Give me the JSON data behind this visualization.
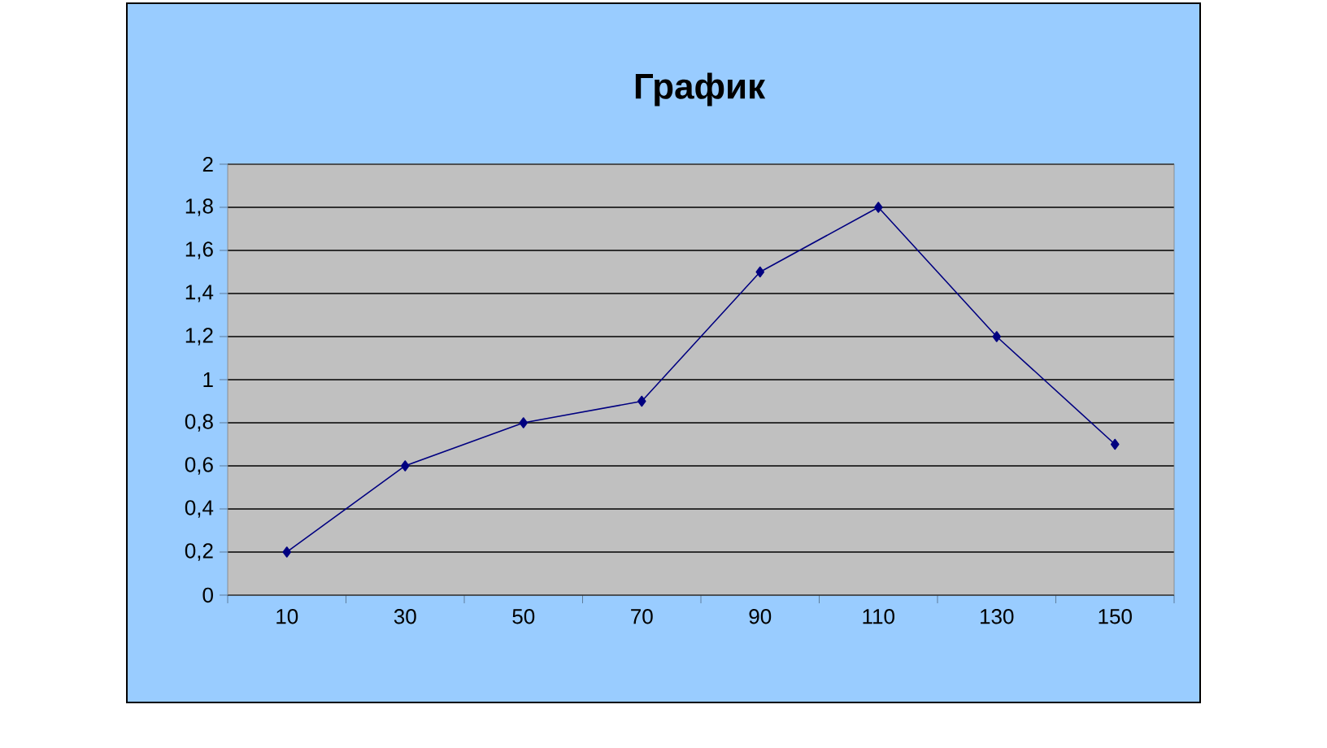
{
  "chart_data": {
    "type": "line",
    "title": "График",
    "categories": [
      "10",
      "30",
      "50",
      "70",
      "90",
      "110",
      "130",
      "150"
    ],
    "series": [
      {
        "color": "#000080",
        "values": [
          0.2,
          0.6,
          0.8,
          0.9,
          1.5,
          1.8,
          1.2,
          0.7
        ]
      }
    ],
    "ylim": [
      0,
      2
    ],
    "yticks": [
      0,
      {
        "value": 0.2,
        "label": "0,2"
      },
      {
        "value": 0.4,
        "label": "0,4"
      },
      {
        "value": 0.6,
        "label": "0,6"
      },
      {
        "value": 0.8,
        "label": "0,8"
      },
      1,
      {
        "value": 1.2,
        "label": "1,2"
      },
      {
        "value": 1.4,
        "label": "1,4"
      },
      {
        "value": 1.6,
        "label": "1,6"
      },
      {
        "value": 1.8,
        "label": "1,8"
      },
      2
    ],
    "grid": "y",
    "marker": "diamond",
    "line_style": "solid"
  }
}
